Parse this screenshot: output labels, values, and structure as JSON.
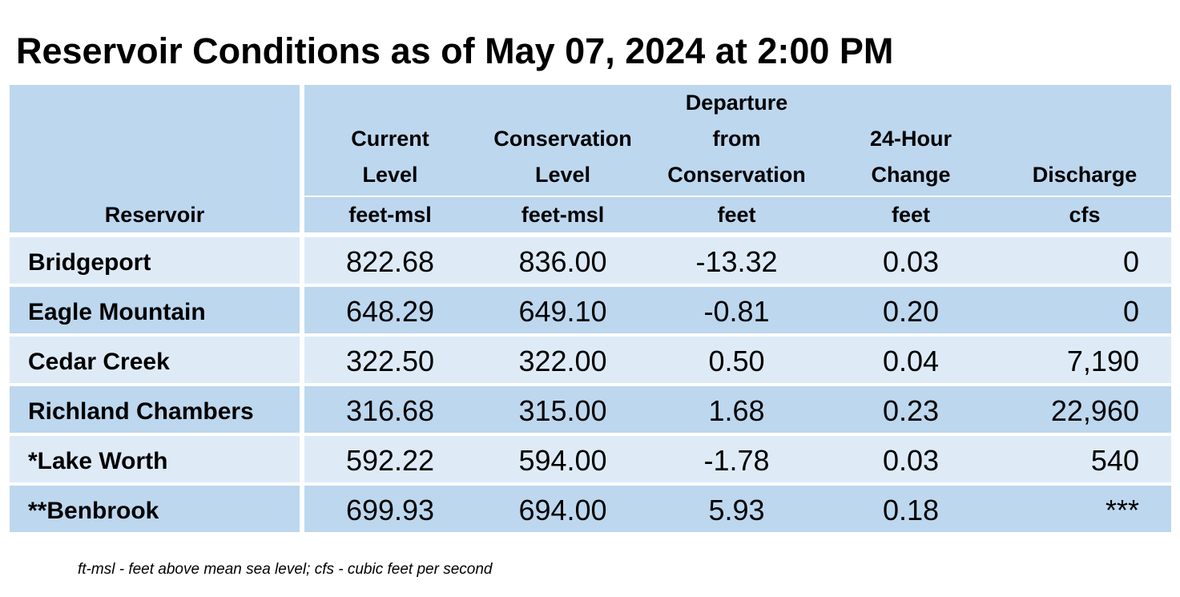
{
  "title": "Reservoir Conditions as of May 07, 2024 at 2:00 PM",
  "headers": {
    "reservoir": "Reservoir",
    "current_level": [
      "Current",
      "Level"
    ],
    "conservation_level": [
      "Conservation",
      "Level"
    ],
    "departure": [
      "Departure",
      "from",
      "Conservation"
    ],
    "change": [
      "24-Hour",
      "Change"
    ],
    "discharge": [
      "Discharge"
    ]
  },
  "units": {
    "current_level": "feet-msl",
    "conservation_level": "feet-msl",
    "departure": "feet",
    "change": "feet",
    "discharge": "cfs"
  },
  "rows": [
    {
      "name": "Bridgeport",
      "current": "822.68",
      "conservation": "836.00",
      "departure": "-13.32",
      "change": "0.03",
      "discharge": "0"
    },
    {
      "name": "Eagle Mountain",
      "current": "648.29",
      "conservation": "649.10",
      "departure": "-0.81",
      "change": "0.20",
      "discharge": "0"
    },
    {
      "name": "Cedar Creek",
      "current": "322.50",
      "conservation": "322.00",
      "departure": "0.50",
      "change": "0.04",
      "discharge": "7,190"
    },
    {
      "name": "Richland Chambers",
      "current": "316.68",
      "conservation": "315.00",
      "departure": "1.68",
      "change": "0.23",
      "discharge": "22,960"
    },
    {
      "name": "*Lake Worth",
      "current": "592.22",
      "conservation": "594.00",
      "departure": "-1.78",
      "change": "0.03",
      "discharge": "540"
    },
    {
      "name": "**Benbrook",
      "current": "699.93",
      "conservation": "694.00",
      "departure": "5.93",
      "change": "0.18",
      "discharge": "***"
    }
  ],
  "footnote": "ft-msl - feet above mean sea level; cfs - cubic feet per second",
  "colors": {
    "header_bg": "#bdd7ee",
    "row_light": "#deebf7",
    "row_dark": "#bdd7ee"
  }
}
